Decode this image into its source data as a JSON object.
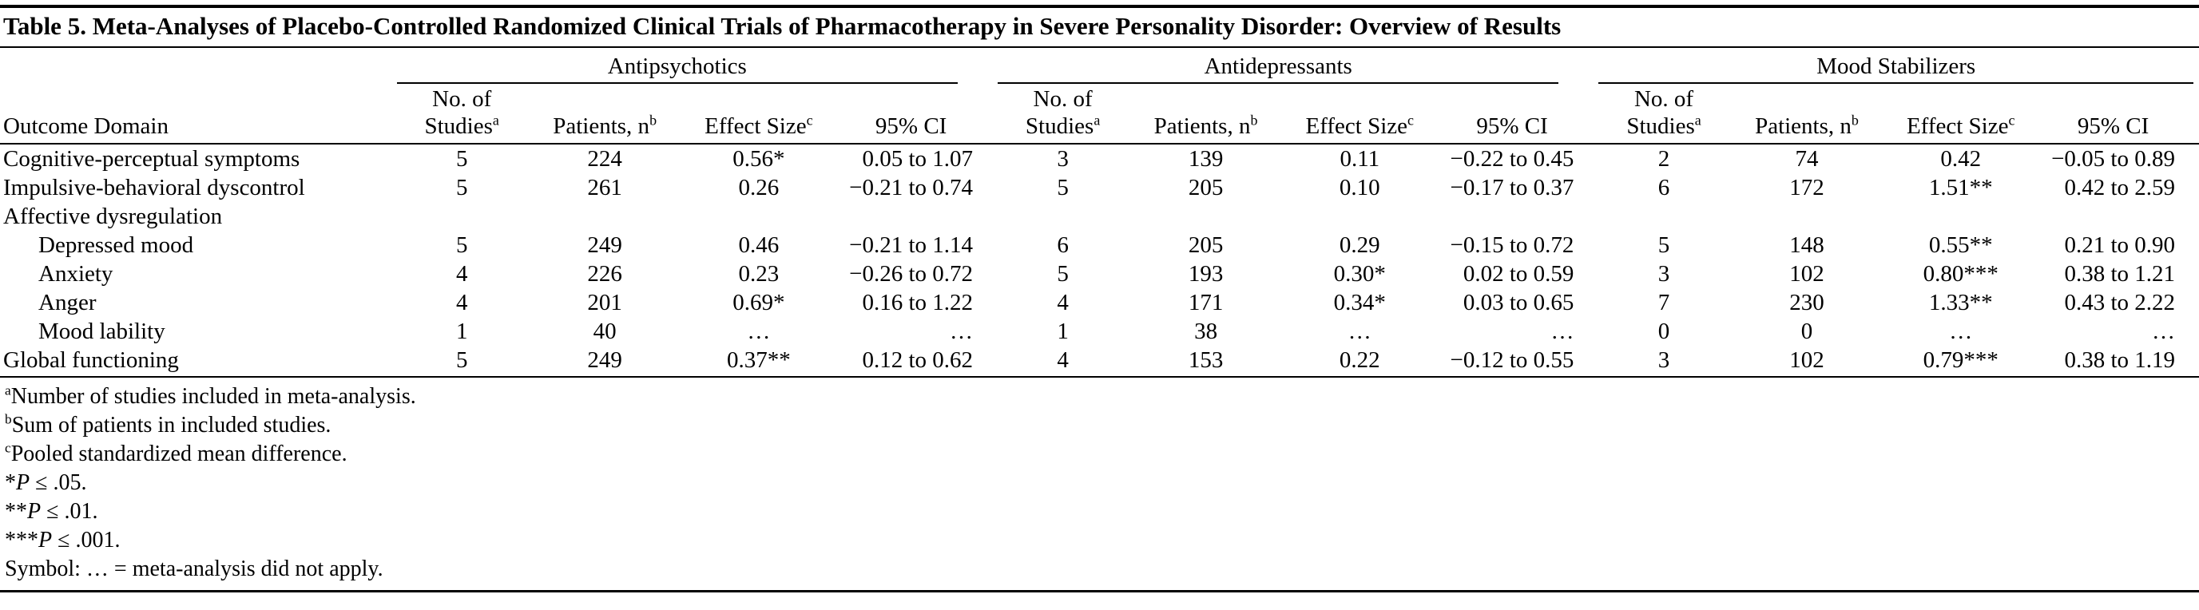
{
  "title": "Table 5. Meta-Analyses of Placebo-Controlled Randomized Clinical Trials of Pharmacotherapy in Severe Personality Disorder: Overview of Results",
  "colors": {
    "text": "#000000",
    "background": "#ffffff",
    "rule": "#000000"
  },
  "table": {
    "row_header": "Outcome Domain",
    "groups": [
      {
        "label": "Antipsychotics"
      },
      {
        "label": "Antidepressants"
      },
      {
        "label": "Mood Stabilizers"
      }
    ],
    "subcolumns": [
      {
        "line1": "No. of",
        "line2": "Studies",
        "sup": "a"
      },
      {
        "line1": "",
        "line2": "Patients, n",
        "sup": "b"
      },
      {
        "line1": "",
        "line2": "Effect Size",
        "sup": "c"
      },
      {
        "line1": "",
        "line2": "95% CI",
        "sup": ""
      }
    ],
    "rows": [
      {
        "label": "Cognitive-perceptual symptoms",
        "indent": 0,
        "cells": [
          "5",
          "224",
          "0.56*",
          "0.05 to 1.07",
          "3",
          "139",
          "0.11",
          "−0.22 to 0.45",
          "2",
          "74",
          "0.42",
          "−0.05 to 0.89"
        ]
      },
      {
        "label": "Impulsive-behavioral dyscontrol",
        "indent": 0,
        "cells": [
          "5",
          "261",
          "0.26",
          "−0.21 to 0.74",
          "5",
          "205",
          "0.10",
          "−0.17 to 0.37",
          "6",
          "172",
          "1.51**",
          "0.42 to 2.59"
        ]
      },
      {
        "label": "Affective dysregulation",
        "indent": 0,
        "cells": []
      },
      {
        "label": "Depressed mood",
        "indent": 1,
        "cells": [
          "5",
          "249",
          "0.46",
          "−0.21 to 1.14",
          "6",
          "205",
          "0.29",
          "−0.15 to 0.72",
          "5",
          "148",
          "0.55**",
          "0.21 to 0.90"
        ]
      },
      {
        "label": "Anxiety",
        "indent": 1,
        "cells": [
          "4",
          "226",
          "0.23",
          "−0.26 to 0.72",
          "5",
          "193",
          "0.30*",
          "0.02 to 0.59",
          "3",
          "102",
          "0.80***",
          "0.38 to 1.21"
        ]
      },
      {
        "label": "Anger",
        "indent": 1,
        "cells": [
          "4",
          "201",
          "0.69*",
          "0.16 to 1.22",
          "4",
          "171",
          "0.34*",
          "0.03 to 0.65",
          "7",
          "230",
          "1.33**",
          "0.43 to 2.22"
        ]
      },
      {
        "label": "Mood lability",
        "indent": 1,
        "cells": [
          "1",
          "40",
          "…",
          "…",
          "1",
          "38",
          "…",
          "…",
          "0",
          "0",
          "…",
          "…"
        ]
      },
      {
        "label": "Global functioning",
        "indent": 0,
        "cells": [
          "5",
          "249",
          "0.37**",
          "0.12 to 0.62",
          "4",
          "153",
          "0.22",
          "−0.12 to 0.55",
          "3",
          "102",
          "0.79***",
          "0.38 to 1.19"
        ]
      }
    ]
  },
  "footnotes": [
    {
      "sup": "a",
      "pre": "",
      "italic": "",
      "text": "Number of studies included in meta-analysis."
    },
    {
      "sup": "b",
      "pre": "",
      "italic": "",
      "text": "Sum of patients in included studies."
    },
    {
      "sup": "c",
      "pre": "",
      "italic": "",
      "text": "Pooled standardized mean difference."
    },
    {
      "sup": "",
      "pre": "*",
      "italic": "P",
      "text": " ≤ .05."
    },
    {
      "sup": "",
      "pre": "**",
      "italic": "P",
      "text": " ≤ .01."
    },
    {
      "sup": "",
      "pre": "***",
      "italic": "P",
      "text": " ≤ .001."
    },
    {
      "sup": "",
      "pre": "",
      "italic": "",
      "text": "Symbol: … = meta-analysis did not apply."
    }
  ]
}
